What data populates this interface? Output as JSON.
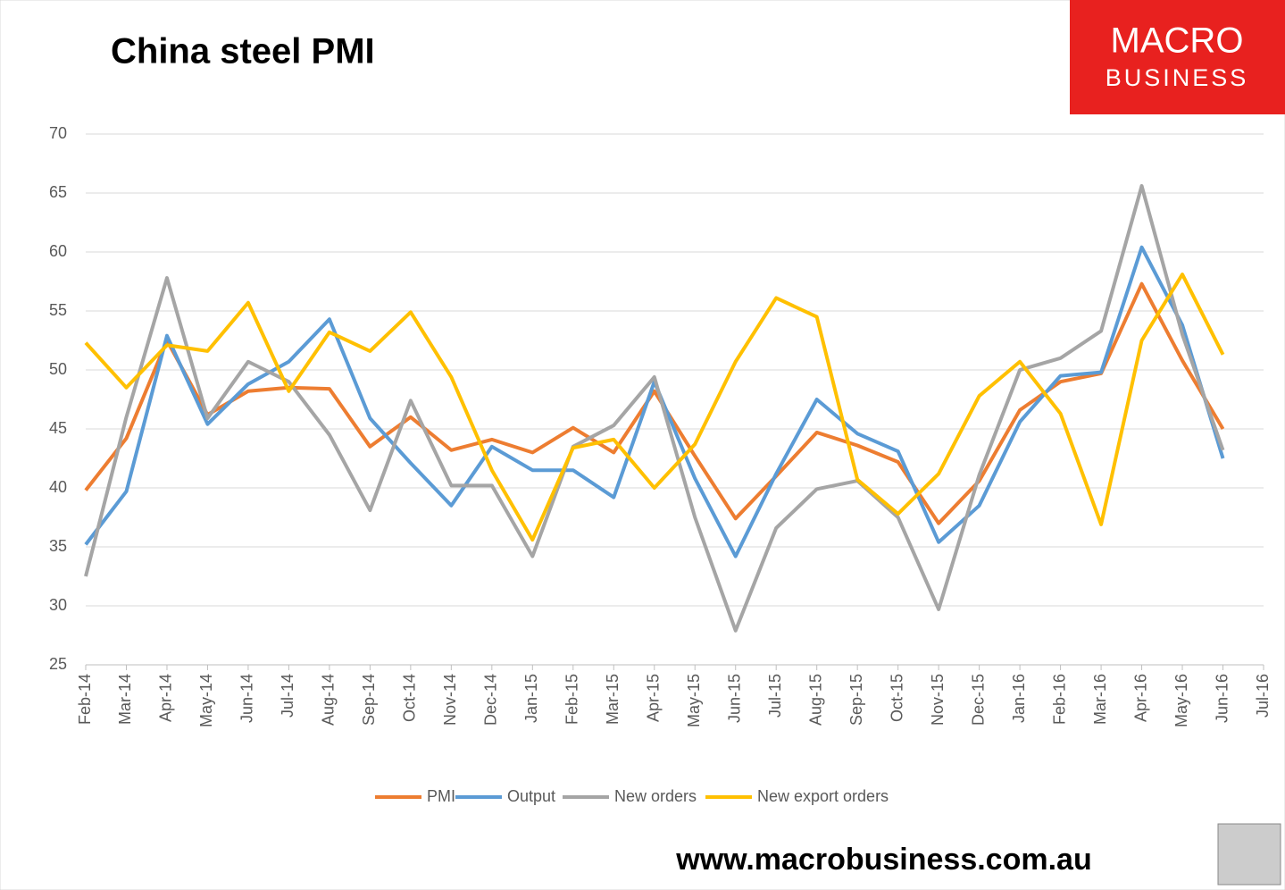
{
  "chart_data": {
    "type": "line",
    "title": "China steel PMI",
    "logo": [
      "MACRO",
      "BUSINESS"
    ],
    "footer": "www.macrobusiness.com.au",
    "categories": [
      "Feb-14",
      "Mar-14",
      "Apr-14",
      "May-14",
      "Jun-14",
      "Jul-14",
      "Aug-14",
      "Sep-14",
      "Oct-14",
      "Nov-14",
      "Dec-14",
      "Jan-15",
      "Feb-15",
      "Mar-15",
      "Apr-15",
      "May-15",
      "Jun-15",
      "Jul-15",
      "Aug-15",
      "Sep-15",
      "Oct-15",
      "Nov-15",
      "Dec-15",
      "Jan-16",
      "Feb-16",
      "Mar-16",
      "Apr-16",
      "May-16",
      "Jun-16",
      "Jul-16"
    ],
    "series": [
      {
        "name": "PMI",
        "color": "#ed7d31",
        "values": [
          39.8,
          44.2,
          52.5,
          46.2,
          48.2,
          48.5,
          48.4,
          43.5,
          46.0,
          43.2,
          44.1,
          43.0,
          45.1,
          43.0,
          48.2,
          42.7,
          37.4,
          41.0,
          44.7,
          43.6,
          42.2,
          37.0,
          40.6,
          46.6,
          49.0,
          49.7,
          57.3,
          50.8,
          45.0,
          null
        ]
      },
      {
        "name": "Output",
        "color": "#5b9bd5",
        "values": [
          35.2,
          39.7,
          52.9,
          45.4,
          48.8,
          50.7,
          54.3,
          45.9,
          42.1,
          38.5,
          43.5,
          41.5,
          41.5,
          39.2,
          49.0,
          40.8,
          34.2,
          41.2,
          47.5,
          44.6,
          43.1,
          35.4,
          38.5,
          45.6,
          49.5,
          49.8,
          60.4,
          53.8,
          42.5,
          null
        ]
      },
      {
        "name": "New orders",
        "color": "#a5a5a5",
        "values": [
          32.5,
          46.0,
          57.8,
          45.9,
          50.7,
          49.0,
          44.5,
          38.1,
          47.4,
          40.2,
          40.2,
          34.2,
          43.5,
          45.3,
          49.4,
          37.5,
          27.9,
          36.6,
          39.9,
          40.6,
          37.5,
          29.7,
          41.1,
          50.0,
          51.0,
          53.3,
          65.6,
          53.0,
          43.2,
          null
        ]
      },
      {
        "name": "New export orders",
        "color": "#ffc000",
        "values": [
          52.3,
          48.5,
          52.1,
          51.6,
          55.7,
          48.2,
          53.2,
          51.6,
          54.9,
          49.4,
          41.5,
          35.6,
          43.4,
          44.1,
          40.0,
          43.7,
          50.7,
          56.1,
          54.5,
          40.7,
          37.8,
          41.2,
          47.8,
          50.7,
          46.3,
          36.9,
          52.5,
          58.1,
          51.3,
          null
        ]
      }
    ],
    "ylim": [
      25,
      70
    ],
    "yticks": [
      25,
      30,
      35,
      40,
      45,
      50,
      55,
      60,
      65,
      70
    ],
    "grid": true,
    "legend": "bottom"
  }
}
